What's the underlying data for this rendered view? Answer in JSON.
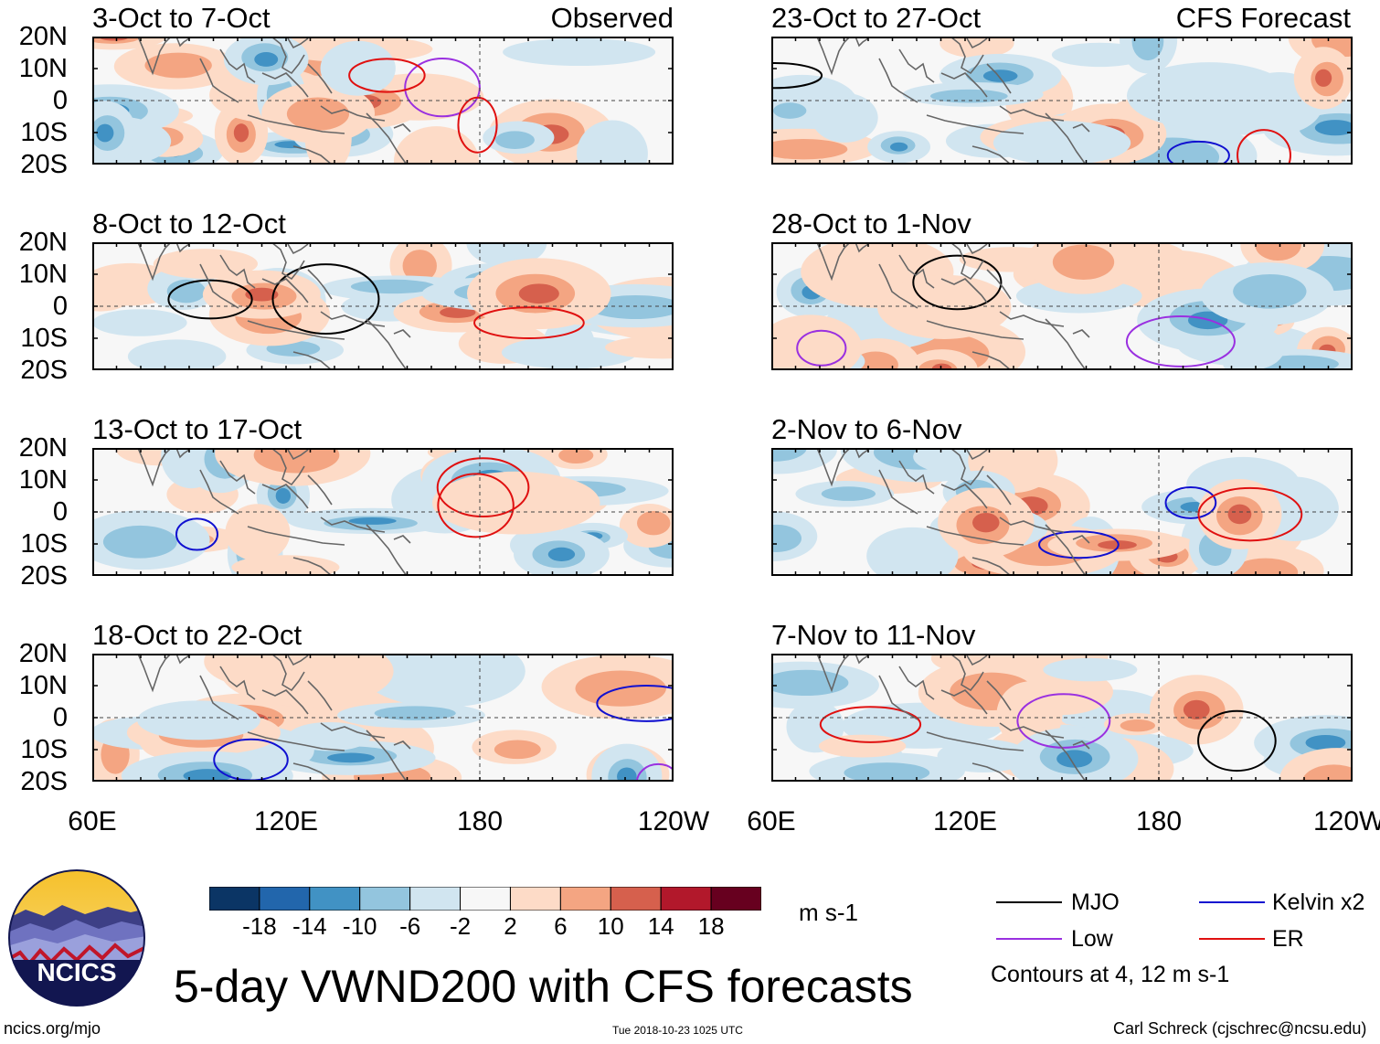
{
  "title": "5-day VWND200 with CFS forecasts",
  "site": "ncics.org/mjo",
  "timestamp": "Tue 2018-10-23 1025 UTC",
  "credit": "Carl Schreck (cjschrec@ncsu.edu)",
  "logo_text": "NCICS",
  "panel_tags": {
    "observed": "Observed",
    "forecast": "CFS Forecast"
  },
  "observed_panels": [
    {
      "label": "3-Oct to 7-Oct"
    },
    {
      "label": "8-Oct to 12-Oct"
    },
    {
      "label": "13-Oct to 17-Oct"
    },
    {
      "label": "18-Oct to 22-Oct"
    }
  ],
  "forecast_panels": [
    {
      "label": "23-Oct to 27-Oct"
    },
    {
      "label": "28-Oct to 1-Nov"
    },
    {
      "label": "2-Nov to 6-Nov"
    },
    {
      "label": "7-Nov to 11-Nov"
    }
  ],
  "y_labels": [
    "20N",
    "10N",
    "0",
    "10S",
    "20S"
  ],
  "x_labels": [
    "60E",
    "120E",
    "180",
    "120W"
  ],
  "colorbar": {
    "unit": "m s-1",
    "ticks": [
      "-18",
      "-14",
      "-10",
      "-6",
      "-2",
      "2",
      "6",
      "10",
      "14",
      "18"
    ],
    "colors": [
      "#0b3565",
      "#2266ac",
      "#4192c4",
      "#93c5de",
      "#d1e5f0",
      "#f7f7f7",
      "#fddbc7",
      "#f4a582",
      "#d6604d",
      "#b2182b",
      "#67001f"
    ]
  },
  "legend": {
    "items": [
      {
        "name": "MJO",
        "color": "#000000"
      },
      {
        "name": "Kelvin x2",
        "color": "#1010d0"
      },
      {
        "name": "Low",
        "color": "#9a30e0"
      },
      {
        "name": "ER",
        "color": "#e01010"
      }
    ],
    "note": "Contours at 4, 12 m s-1"
  }
}
